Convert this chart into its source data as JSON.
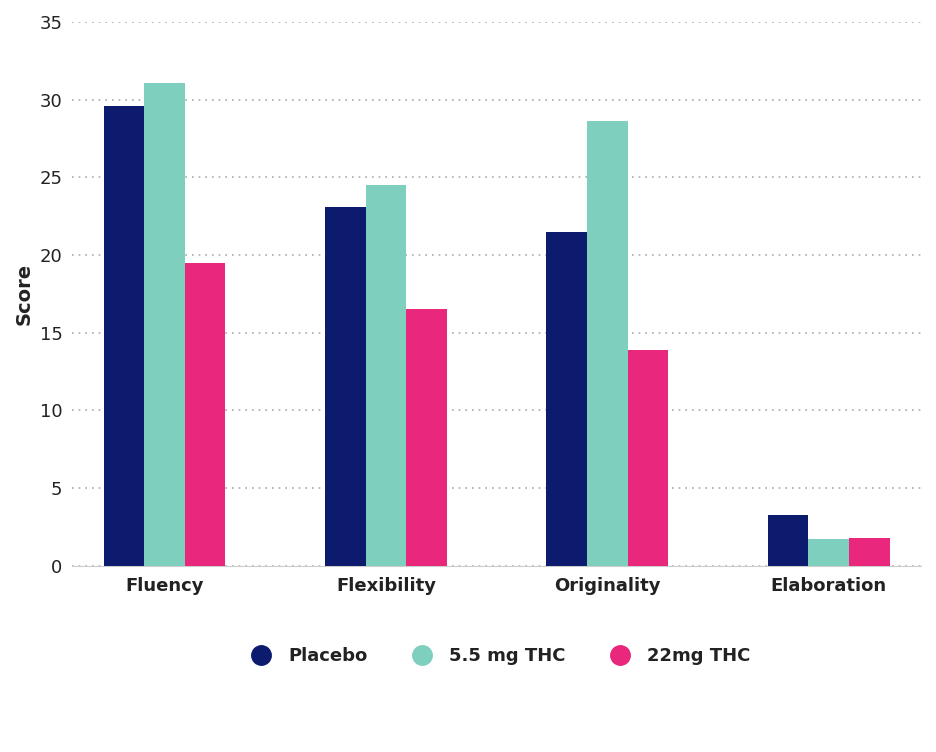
{
  "categories": [
    "Fluency",
    "Flexibility",
    "Originality",
    "Elaboration"
  ],
  "placebo": [
    29.6,
    23.1,
    21.5,
    3.3
  ],
  "thc_low": [
    31.1,
    24.5,
    28.6,
    1.7
  ],
  "thc_high": [
    19.5,
    16.5,
    13.9,
    1.8
  ],
  "colors": {
    "placebo": "#0d1b6e",
    "thc_low": "#7ecfbe",
    "thc_high": "#e8277d"
  },
  "legend_labels": [
    "Placebo",
    "5.5 mg THC",
    "22mg THC"
  ],
  "ylabel": "Score",
  "ylim": [
    0,
    35
  ],
  "yticks": [
    0,
    5,
    10,
    15,
    20,
    25,
    30,
    35
  ],
  "background_color": "#ffffff",
  "bar_width": 0.22,
  "axis_fontsize": 14,
  "tick_fontsize": 13,
  "legend_fontsize": 13
}
